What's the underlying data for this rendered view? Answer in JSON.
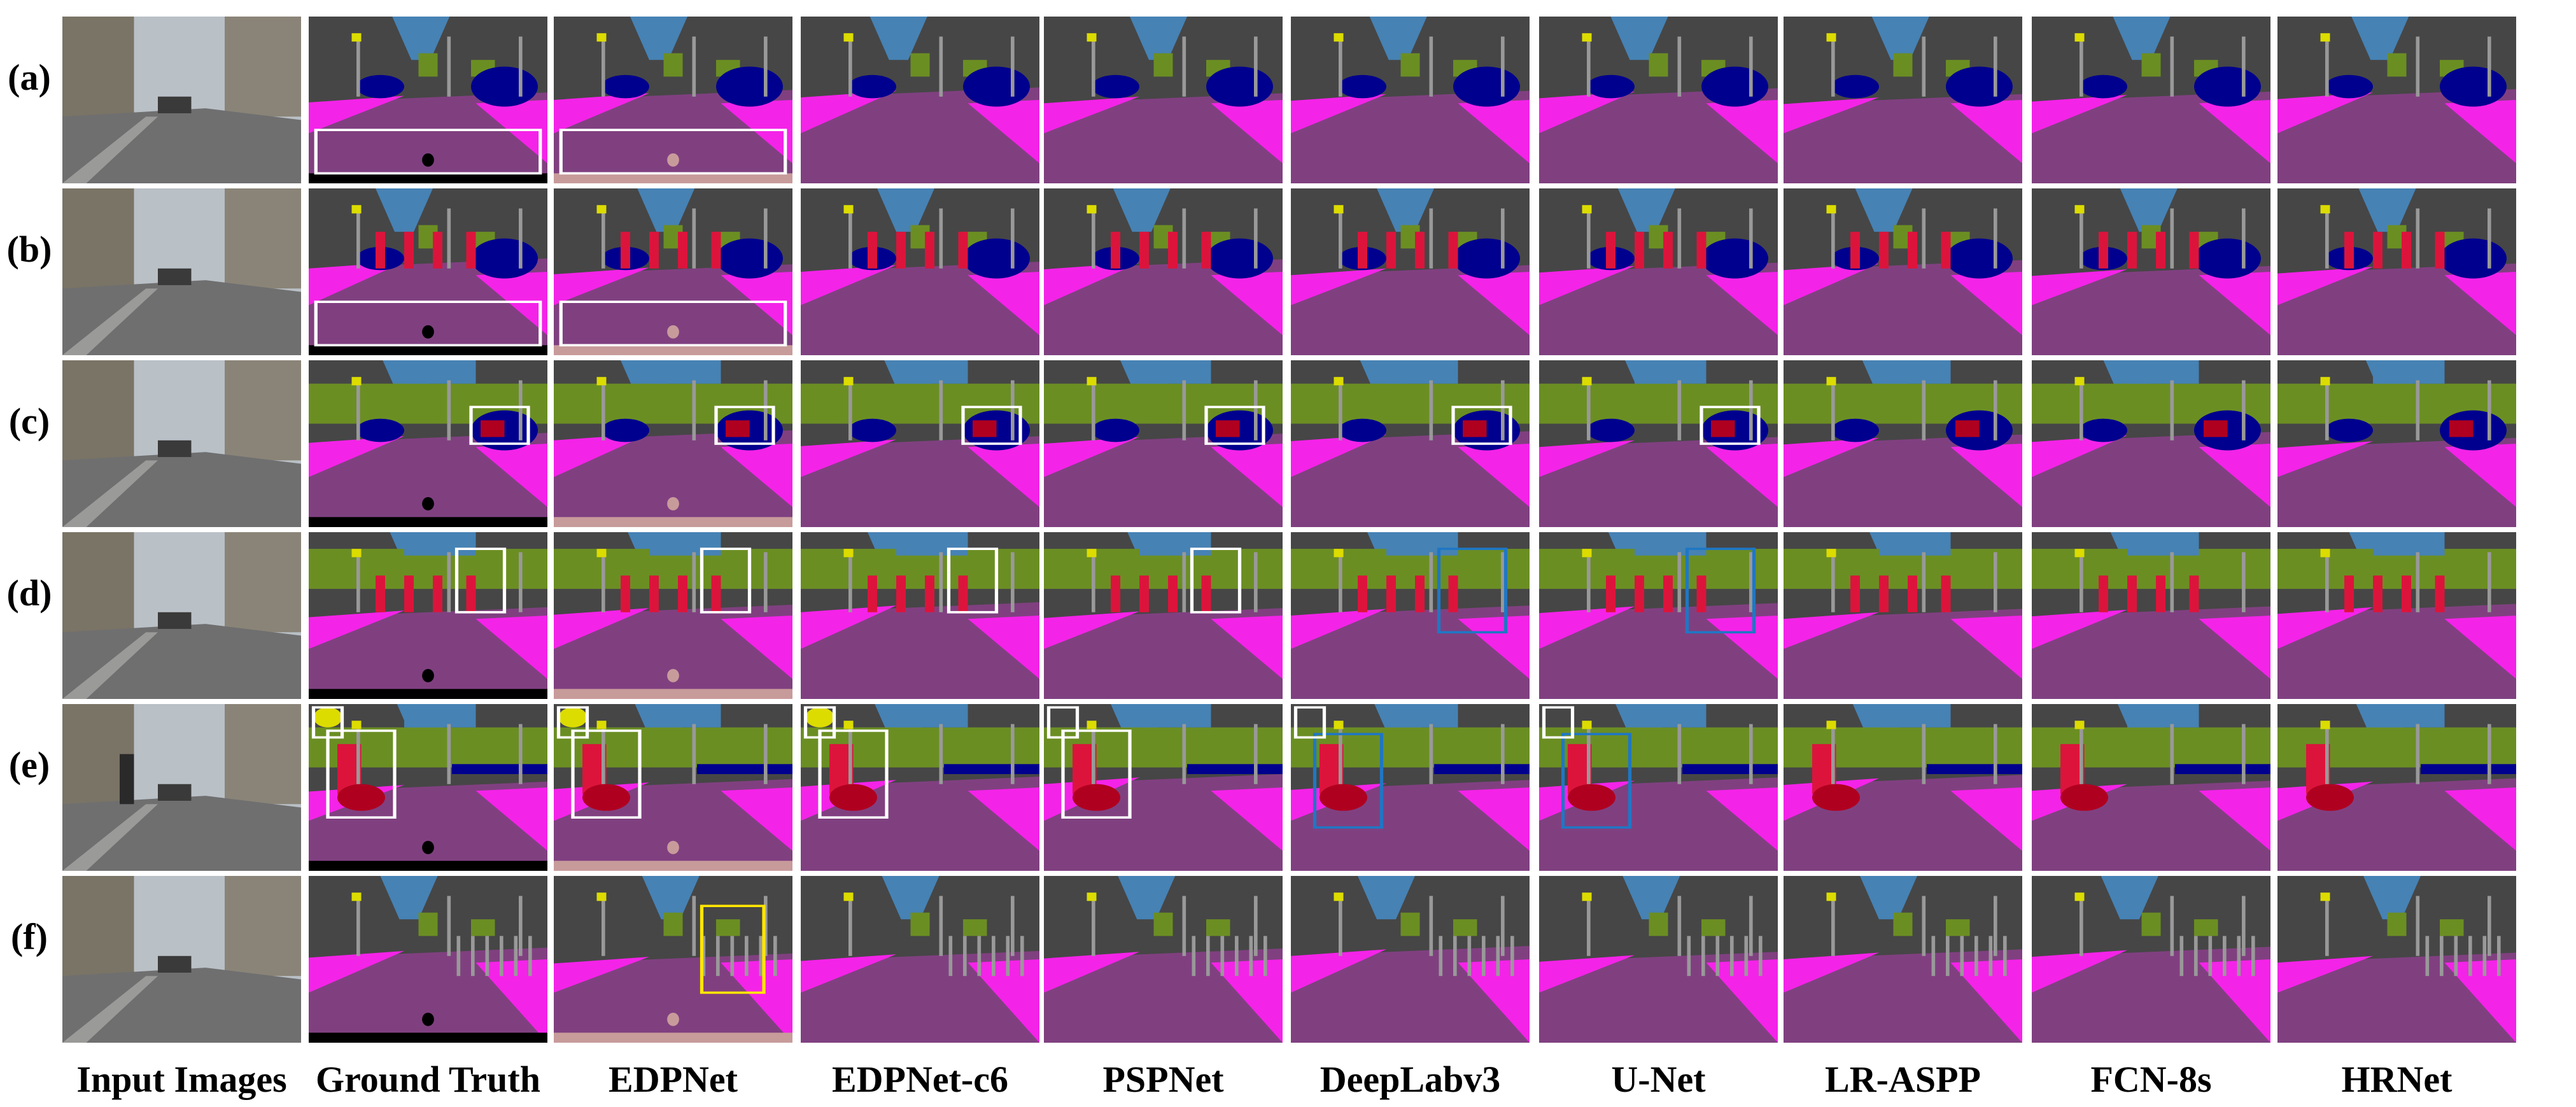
{
  "figure": {
    "row_labels": [
      "(a)",
      "(b)",
      "(c)",
      "(d)",
      "(e)",
      "(f)"
    ],
    "column_labels": [
      "Input Images",
      "Ground Truth",
      "EDPNet",
      "EDPNet-c6",
      "PSPNet",
      "DeepLabv3",
      "U-Net",
      "LR-ASPP",
      "FCN-8s",
      "HRNet"
    ]
  },
  "colors": {
    "sky": "#4682b4",
    "building": "#464646",
    "vegetation": "#6b8e23",
    "road": "#804080",
    "sidewalk": "#f423e8",
    "terrain": "#98fb98",
    "car": "#00008e",
    "person": "#dc143c",
    "rider": "#b00020",
    "traffic_sign": "#dcdc00",
    "pole": "#999999",
    "wall": "#c89b9b",
    "ego": "#000000",
    "highlight_white": "#ffffff",
    "highlight_blue": "#1f77c4",
    "highlight_yellow": "#ffe600"
  }
}
